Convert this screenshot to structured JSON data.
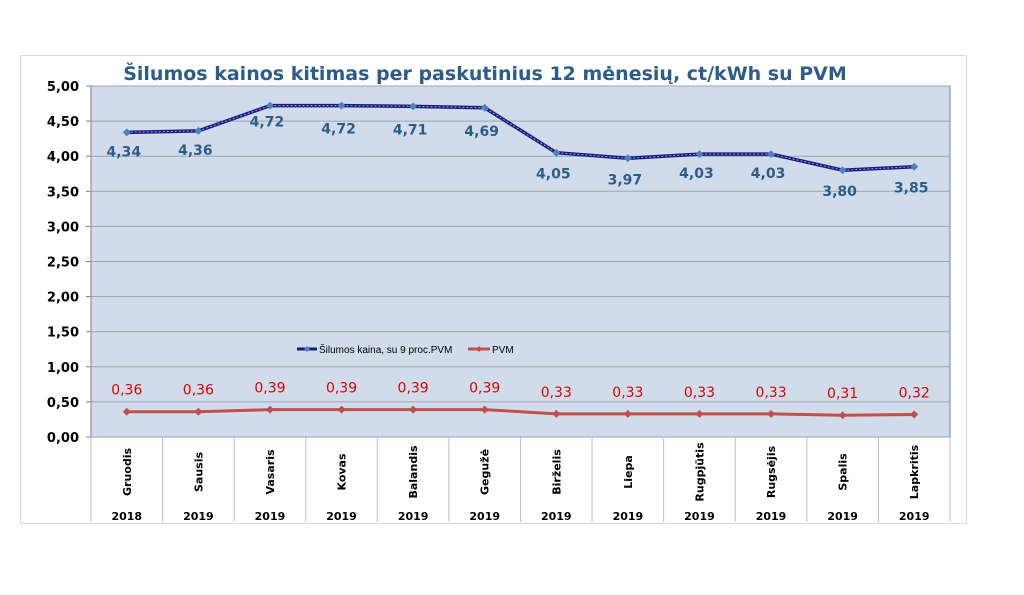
{
  "chart_data": {
    "type": "line",
    "title": "Šilumos kainos kitimas per paskutinius 12 mėnesių, ct/kWh su PVM",
    "categories": [
      "Gruodis",
      "Sausis",
      "Vasaris",
      "Kovas",
      "Balandis",
      "Gegužė",
      "Birželis",
      "Liepa",
      "Rugpjūtis",
      "Rugsėjis",
      "Spalis",
      "Lapkritis"
    ],
    "years": [
      "2018",
      "2019",
      "2019",
      "2019",
      "2019",
      "2019",
      "2019",
      "2019",
      "2019",
      "2019",
      "2019",
      "2019"
    ],
    "series": [
      {
        "name": "Šilumos kaina, su 9 proc.PVM",
        "color": "#1a1a80",
        "marker_color": "#4f81bd",
        "label_color": "#2e5c8a",
        "values": [
          4.34,
          4.36,
          4.72,
          4.72,
          4.71,
          4.69,
          4.05,
          3.97,
          4.03,
          4.03,
          3.8,
          3.85
        ],
        "labels": [
          "4,34",
          "4,36",
          "4,72",
          "4,72",
          "4,71",
          "4,69",
          "4,05",
          "3,97",
          "4,03",
          "4,03",
          "3,80",
          "3,85"
        ]
      },
      {
        "name": "PVM",
        "color": "#c0504d",
        "marker_color": "#c0504d",
        "label_color": "#e00000",
        "values": [
          0.36,
          0.36,
          0.39,
          0.39,
          0.39,
          0.39,
          0.33,
          0.33,
          0.33,
          0.33,
          0.31,
          0.32
        ],
        "labels": [
          "0,36",
          "0,36",
          "0,39",
          "0,39",
          "0,39",
          "0,39",
          "0,33",
          "0,33",
          "0,33",
          "0,33",
          "0,31",
          "0,32"
        ]
      }
    ],
    "yticks": [
      "0,00",
      "0,50",
      "1,00",
      "1,50",
      "2,00",
      "2,50",
      "3,00",
      "3,50",
      "4,00",
      "4,50",
      "5,00"
    ],
    "ylim": [
      0,
      5
    ],
    "grid": true,
    "legend_position": "center-lower",
    "plot_bg": "#d0dcea",
    "title_color": "#2e5c8a"
  }
}
